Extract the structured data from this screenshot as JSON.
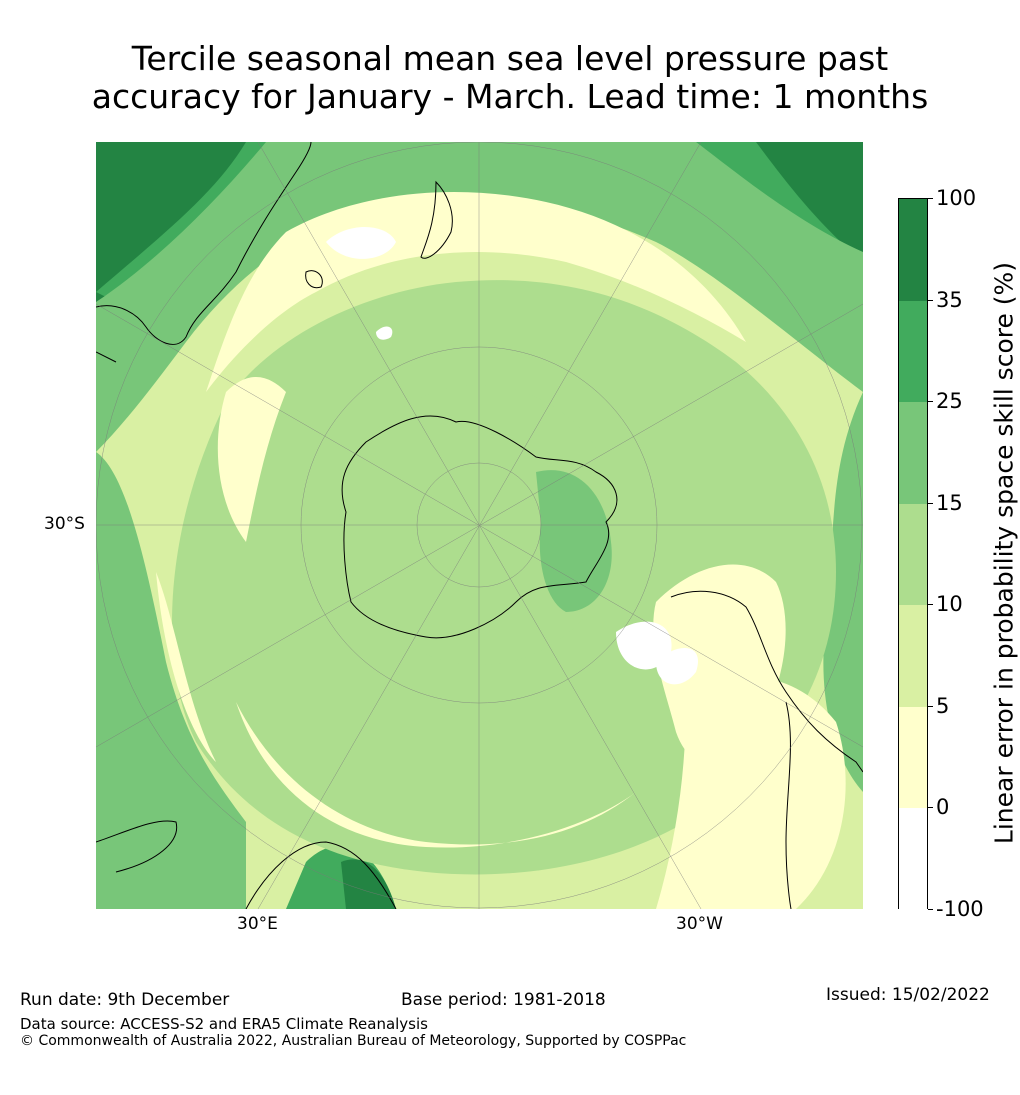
{
  "title_line1": "Tercile seasonal mean sea level pressure past",
  "title_line2": "accuracy for January - March. Lead time: 1 months",
  "map": {
    "labels": {
      "lat": "30°S",
      "lon_east": "30°E",
      "lon_west": "30°W"
    },
    "colors": {
      "c0": "#ffffff",
      "c1": "#ffffcc",
      "c2": "#d9f0a3",
      "c3": "#addd8e",
      "c4": "#78c679",
      "c5": "#41ab5d",
      "c6": "#238443",
      "land_outline": "#000000",
      "grid": "#7a7a7a"
    }
  },
  "colorbar": {
    "label": "Linear error in probability space skill score (%)",
    "ticks": [
      "100",
      "35",
      "25",
      "15",
      "10",
      "5",
      "0",
      "-100"
    ],
    "colors": [
      "#238443",
      "#41ab5d",
      "#78c679",
      "#addd8e",
      "#d9f0a3",
      "#ffffcc",
      "#ffffff"
    ]
  },
  "footer": {
    "run_date": "Run date: 9th December",
    "base_period": "Base period: 1981-2018",
    "issued": "Issued: 15/02/2022",
    "data_source": "Data source: ACCESS-S2 and ERA5 Climate Reanalysis",
    "copyright": "© Commonwealth of Australia 2022, Australian Bureau of Meteorology, Supported by COSPPac"
  }
}
